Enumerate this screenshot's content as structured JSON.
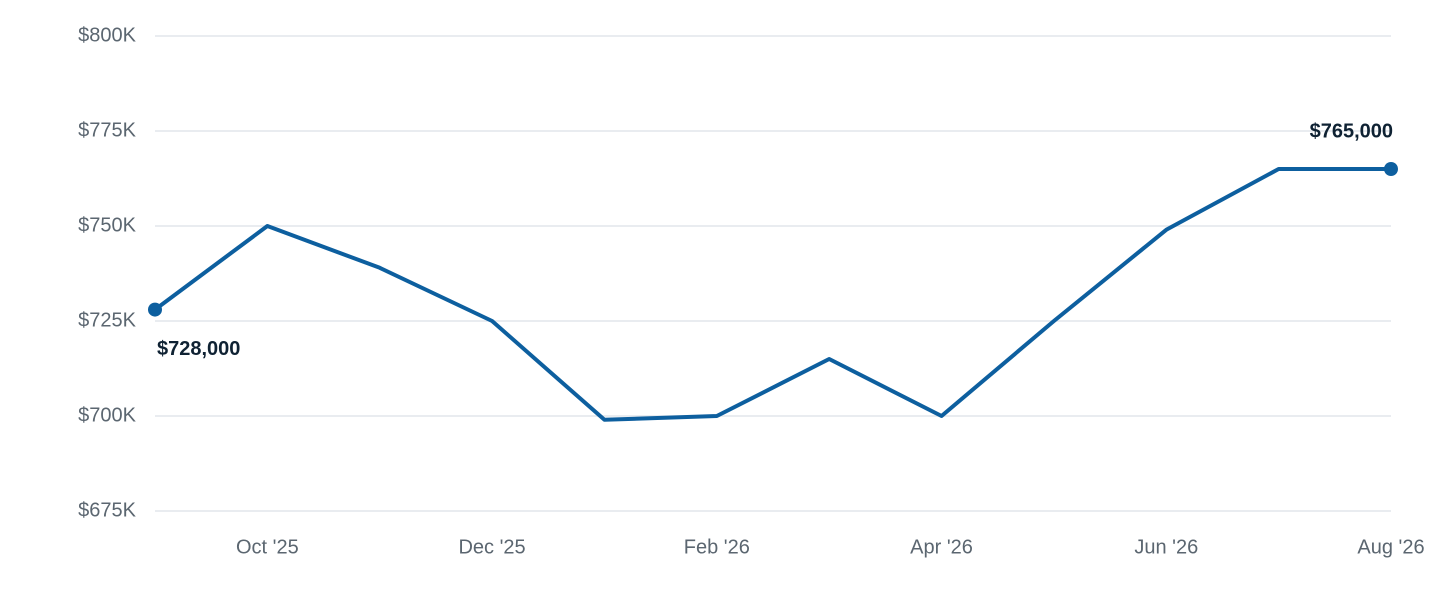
{
  "chart_data": {
    "type": "line",
    "categories": [
      null,
      "Oct '25",
      null,
      "Dec '25",
      null,
      "Feb '26",
      null,
      "Apr '26",
      null,
      "Jun '26",
      null,
      "Aug '26"
    ],
    "series": [
      {
        "color": "#0d5f9f",
        "values": [
          728000,
          750000,
          739000,
          725000,
          699000,
          700000,
          715000,
          700000,
          725000,
          749000,
          765000,
          765000
        ],
        "value_labels": [
          "$728,000",
          null,
          null,
          null,
          null,
          null,
          null,
          null,
          null,
          null,
          null,
          "$765,000"
        ]
      }
    ],
    "ylim": [
      675000,
      800000
    ],
    "yticks": [
      {
        "value": 675000,
        "label": "$675K"
      },
      {
        "value": 700000,
        "label": "$700K"
      },
      {
        "value": 725000,
        "label": "$725K"
      },
      {
        "value": 750000,
        "label": "$750K"
      },
      {
        "value": 775000,
        "label": "$775K"
      },
      {
        "value": 800000,
        "label": "$800K"
      }
    ],
    "grid": true
  }
}
